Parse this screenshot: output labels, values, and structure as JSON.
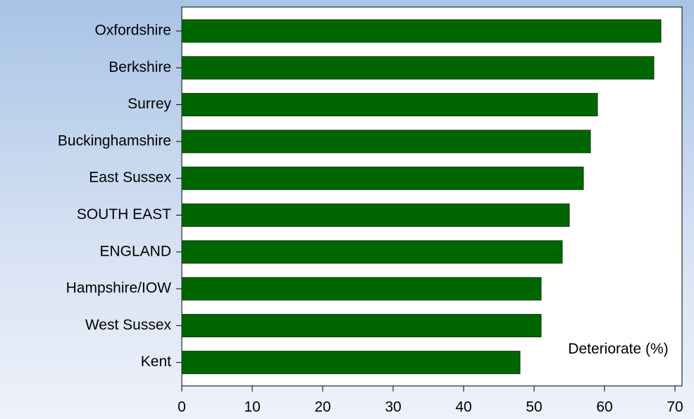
{
  "chart_data": {
    "type": "barh",
    "categories": [
      "Oxfordshire",
      "Berkshire",
      "Surrey",
      "Buckinghamshire",
      "East Sussex",
      "SOUTH EAST",
      "ENGLAND",
      "Hampshire/IOW",
      "West Sussex",
      "Kent"
    ],
    "values": [
      68,
      67,
      59,
      58,
      57,
      55,
      54,
      51,
      51,
      48
    ],
    "color": "#006600",
    "xlim": [
      0,
      71
    ],
    "xticks": [
      0,
      10,
      20,
      30,
      40,
      50,
      60,
      70
    ],
    "annotation": "Deteriorate (%)"
  }
}
